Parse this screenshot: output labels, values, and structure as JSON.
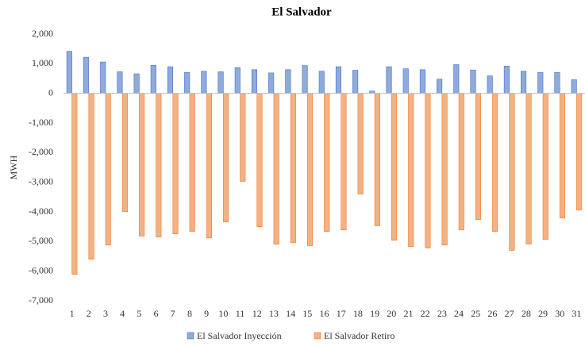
{
  "chart_data": {
    "type": "bar",
    "title": "El Salvador",
    "y_label": "MWH",
    "categories": [
      "1",
      "2",
      "3",
      "4",
      "5",
      "6",
      "7",
      "8",
      "9",
      "10",
      "11",
      "12",
      "13",
      "14",
      "15",
      "16",
      "17",
      "18",
      "19",
      "20",
      "21",
      "22",
      "23",
      "24",
      "25",
      "26",
      "27",
      "28",
      "29",
      "30",
      "31"
    ],
    "series": [
      {
        "name": "El Salvador Inyección",
        "color": "#8faadc",
        "values": [
          1420,
          1220,
          1060,
          730,
          660,
          950,
          900,
          710,
          750,
          730,
          870,
          800,
          690,
          800,
          940,
          750,
          900,
          780,
          80,
          900,
          830,
          800,
          480,
          970,
          790,
          590,
          920,
          750,
          710,
          710,
          460
        ]
      },
      {
        "name": "El Salvador Retiro",
        "color": "#f4b183",
        "values": [
          -6110,
          -5600,
          -5120,
          -3990,
          -4820,
          -4850,
          -4740,
          -4660,
          -4880,
          -4340,
          -2970,
          -4500,
          -5090,
          -5040,
          -5140,
          -4660,
          -4610,
          -3400,
          -4470,
          -4960,
          -5170,
          -5220,
          -5120,
          -4610,
          -4260,
          -4660,
          -5300,
          -5090,
          -4930,
          -4210,
          -3940
        ]
      }
    ],
    "ylim": [
      -7000,
      2000
    ],
    "yticks": [
      {
        "value": 2000,
        "label": "2,000"
      },
      {
        "value": 1000,
        "label": "1,000"
      },
      0,
      {
        "value": -1000,
        "label": "-1,000"
      },
      {
        "value": -2000,
        "label": "-2,000"
      },
      {
        "value": -3000,
        "label": "-3,000"
      },
      {
        "value": -4000,
        "label": "-4,000"
      },
      {
        "value": -5000,
        "label": "-5,000"
      },
      {
        "value": -6000,
        "label": "-6,000"
      },
      {
        "value": -7000,
        "label": "-7,000"
      }
    ],
    "legend": "bottom"
  }
}
